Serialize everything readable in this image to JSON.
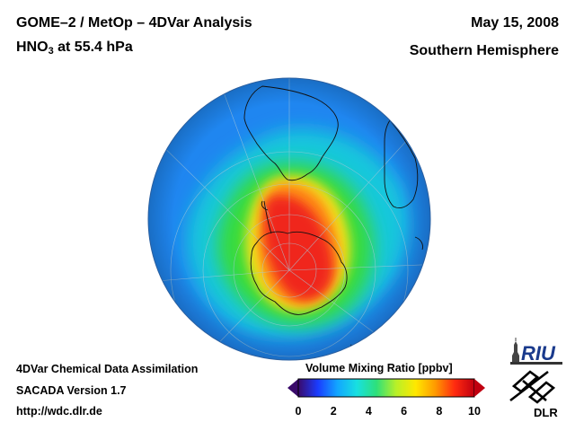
{
  "header": {
    "title_line1": "GOME–2 / MetOp – 4DVar Analysis",
    "species_prefix": "HNO",
    "species_sub": "3",
    "species_suffix": " at 55.4 hPa",
    "date": "May 15, 2008",
    "region": "Southern Hemisphere"
  },
  "footer": {
    "line1": "4DVar Chemical Data Assimilation",
    "line2": "SACADA Version 1.7",
    "line3": "http://wdc.dlr.de"
  },
  "colorbar": {
    "title": "Volume Mixing Ratio [ppbv]",
    "min": 0,
    "max": 10,
    "ticks": [
      "0",
      "2",
      "4",
      "6",
      "8",
      "10"
    ],
    "colors": [
      "#3a0a6a",
      "#1a3cff",
      "#12a6ff",
      "#18e0e0",
      "#2ee07a",
      "#b8f028",
      "#ffe800",
      "#ff9a00",
      "#ff2a10",
      "#c00010"
    ]
  },
  "map": {
    "projection": "orthographic south-polar",
    "field_colors": {
      "background": "#1f86f0",
      "mid_ring": "#15c8dc",
      "green": "#38dc3a",
      "yellow": "#f2e21a",
      "orange": "#ff8a14",
      "red": "#f0281a"
    }
  },
  "logos": {
    "riu": "RIU",
    "dlr": "DLR"
  }
}
